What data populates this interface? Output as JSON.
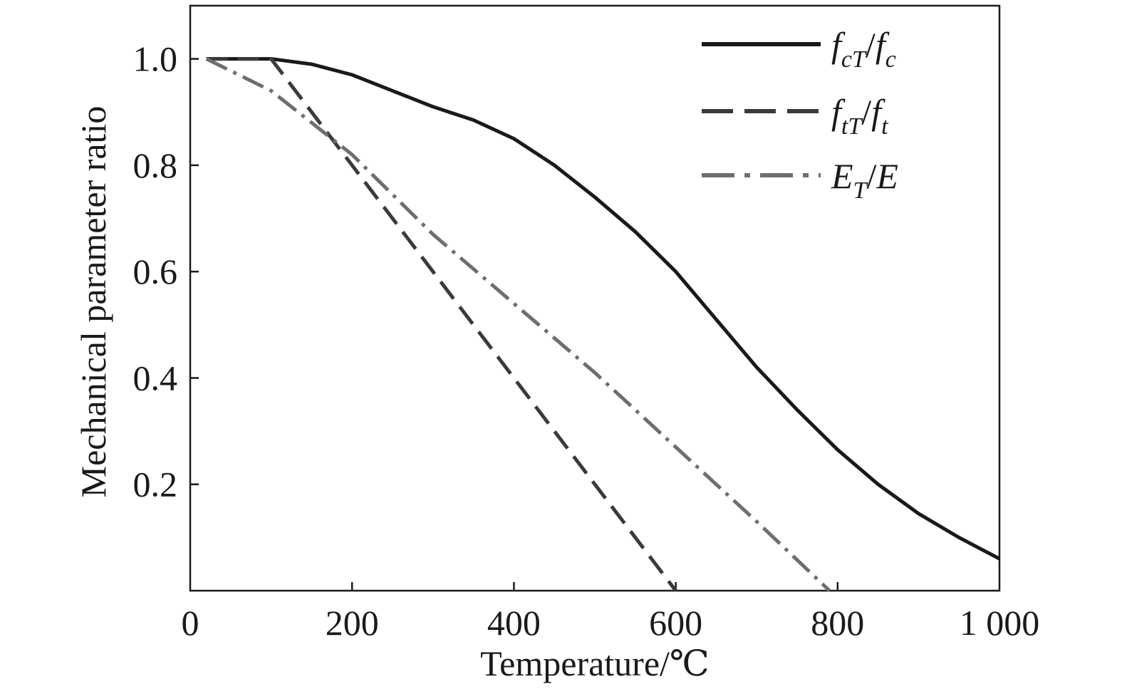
{
  "chart_data": {
    "type": "line",
    "xlabel": "Temperature/℃",
    "ylabel": "Mechanical parameter ratio",
    "xlim": [
      0,
      1000
    ],
    "ylim": [
      0,
      1.1
    ],
    "x_ticks": [
      {
        "value": 0,
        "label": "0"
      },
      {
        "value": 200,
        "label": "200"
      },
      {
        "value": 400,
        "label": "400"
      },
      {
        "value": 600,
        "label": "600"
      },
      {
        "value": 800,
        "label": "800"
      },
      {
        "value": 1000,
        "label": "1 000"
      }
    ],
    "y_ticks": [
      {
        "value": 0.2,
        "label": "0.2"
      },
      {
        "value": 0.4,
        "label": "0.4"
      },
      {
        "value": 0.6,
        "label": "0.6"
      },
      {
        "value": 0.8,
        "label": "0.8"
      },
      {
        "value": 1.0,
        "label": "1.0"
      }
    ],
    "grid": false,
    "legend_position": "top-right",
    "series": [
      {
        "name": "fcT/fc",
        "legend": {
          "main1": "f",
          "sub1": "cT",
          "mid": "/",
          "main2": "f",
          "sub2": "c"
        },
        "style": "solid",
        "color": "#1a1a1a",
        "x": [
          20,
          100,
          150,
          200,
          250,
          300,
          350,
          400,
          450,
          500,
          550,
          600,
          650,
          700,
          750,
          800,
          850,
          900,
          950,
          1000
        ],
        "y": [
          1.0,
          1.0,
          0.99,
          0.97,
          0.94,
          0.91,
          0.885,
          0.85,
          0.8,
          0.74,
          0.675,
          0.6,
          0.51,
          0.42,
          0.34,
          0.265,
          0.2,
          0.145,
          0.1,
          0.06
        ]
      },
      {
        "name": "ftT/ft",
        "legend": {
          "main1": "f",
          "sub1": "tT",
          "mid": "/",
          "main2": "f",
          "sub2": "t"
        },
        "style": "dashed",
        "color": "#3a3a3a",
        "x": [
          20,
          100,
          200,
          300,
          400,
          500,
          600
        ],
        "y": [
          1.0,
          1.0,
          0.8,
          0.6,
          0.4,
          0.2,
          0.0
        ]
      },
      {
        "name": "ET/E",
        "legend": {
          "main1": "E",
          "sub1": "T",
          "mid": "/",
          "main2": "E",
          "sub2": ""
        },
        "style": "dashdot",
        "color": "#6e6e6e",
        "x": [
          20,
          100,
          200,
          300,
          400,
          500,
          600,
          700,
          790
        ],
        "y": [
          1.0,
          0.94,
          0.82,
          0.67,
          0.54,
          0.41,
          0.27,
          0.13,
          0.0
        ]
      }
    ]
  }
}
